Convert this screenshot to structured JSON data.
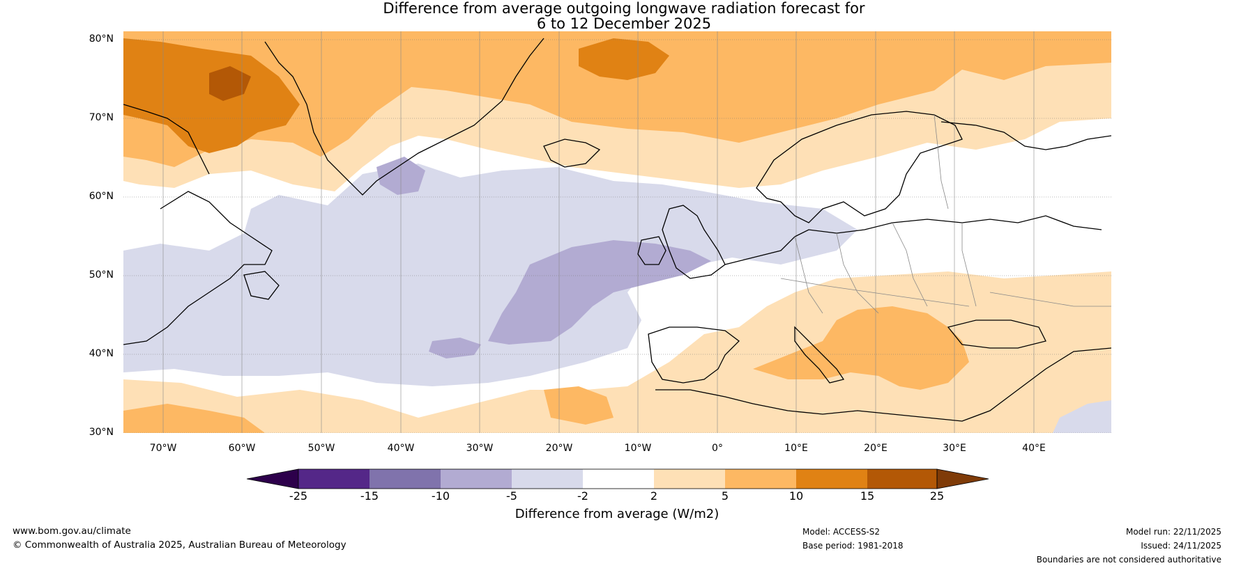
{
  "title": {
    "line1": "Difference from average outgoing longwave radiation forecast for",
    "line2": "6 to 12 December 2025"
  },
  "map": {
    "lat_labels": [
      "80°N",
      "70°N",
      "60°N",
      "50°N",
      "40°N",
      "30°N"
    ],
    "lon_labels": [
      "70°W",
      "60°W",
      "50°W",
      "40°W",
      "30°W",
      "20°W",
      "10°W",
      "0°",
      "10°E",
      "20°E",
      "30°E",
      "40°E"
    ],
    "lat_range": [
      30,
      81
    ],
    "lon_range": [
      -75,
      50
    ]
  },
  "colorbar": {
    "label": "Difference from average (W/m2)",
    "ticks": [
      "-25",
      "-15",
      "-10",
      "-5",
      "-2",
      "2",
      "5",
      "10",
      "15",
      "25"
    ],
    "colors": {
      "below_min": "#2d004b",
      "bins": [
        "#542788",
        "#8073ac",
        "#b2abd2",
        "#d8daeb",
        "#ffffff",
        "#fee0b6",
        "#fdb863",
        "#e08214",
        "#b35806"
      ],
      "above_max": "#7f3b08"
    }
  },
  "footer": {
    "website": "www.bom.gov.au/climate",
    "copyright": "© Commonwealth of Australia 2025, Australian Bureau of Meteorology",
    "model": "Model: ACCESS-S2",
    "base_period": "Base period: 1981-2018",
    "model_run": "Model run: 22/11/2025",
    "issued": "Issued: 24/11/2025",
    "disclaimer": "Boundaries are not considered authoritative"
  }
}
